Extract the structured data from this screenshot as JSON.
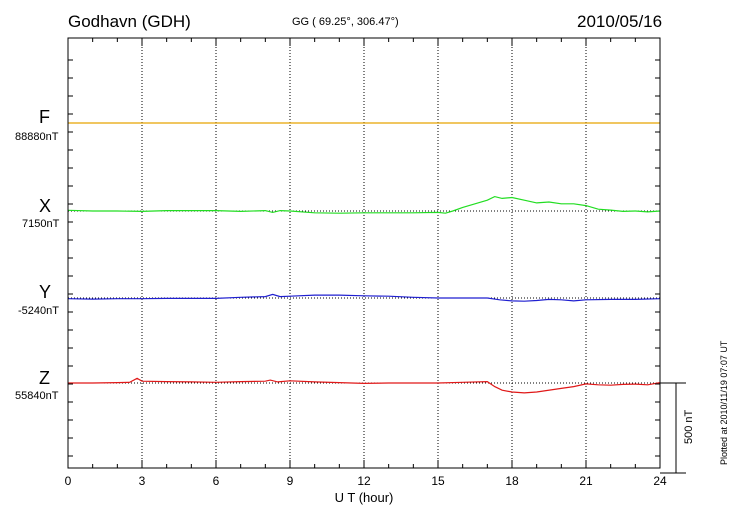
{
  "header": {
    "station": "Godhavn (GDH)",
    "coords": "GG ( 69.25°, 306.47°)",
    "date": "2010/05/16"
  },
  "side_note": "Plotted at 2010/11/19 07:07 UT",
  "scale_label": "500 nT",
  "chart_data": {
    "type": "line",
    "xlabel": "U T (hour)",
    "xlim": [
      0,
      24
    ],
    "x_ticks": [
      0,
      3,
      6,
      9,
      12,
      15,
      18,
      21,
      24
    ],
    "units": "nT",
    "scale_bar_nT": 500,
    "grid": true,
    "series": [
      {
        "name": "F",
        "baseline_label": "88880nT",
        "color": "#e8a400",
        "values": [
          [
            0,
            0
          ],
          [
            24,
            0
          ]
        ]
      },
      {
        "name": "X",
        "baseline_label": "7150nT",
        "color": "#22dd22",
        "values": [
          [
            0,
            4
          ],
          [
            1,
            0
          ],
          [
            2,
            0
          ],
          [
            3,
            -2
          ],
          [
            4,
            2
          ],
          [
            5,
            2
          ],
          [
            6,
            2
          ],
          [
            7,
            -2
          ],
          [
            8,
            2
          ],
          [
            8.3,
            -8
          ],
          [
            8.6,
            2
          ],
          [
            9,
            0
          ],
          [
            10,
            -10
          ],
          [
            11,
            -12
          ],
          [
            12,
            -10
          ],
          [
            13,
            -10
          ],
          [
            14,
            -10
          ],
          [
            15,
            -8
          ],
          [
            15.3,
            -12
          ],
          [
            15.6,
            0
          ],
          [
            16,
            20
          ],
          [
            16.5,
            40
          ],
          [
            17,
            60
          ],
          [
            17.3,
            80
          ],
          [
            17.6,
            70
          ],
          [
            18,
            75
          ],
          [
            18.5,
            60
          ],
          [
            19,
            45
          ],
          [
            19.5,
            50
          ],
          [
            20,
            40
          ],
          [
            20.5,
            40
          ],
          [
            21,
            30
          ],
          [
            21.5,
            10
          ],
          [
            22,
            5
          ],
          [
            22.5,
            -2
          ],
          [
            23,
            0
          ],
          [
            23.5,
            -5
          ],
          [
            24,
            0
          ]
        ]
      },
      {
        "name": "Y",
        "baseline_label": "-5240nT",
        "color": "#1f1fd0",
        "values": [
          [
            0,
            -4
          ],
          [
            1,
            -6
          ],
          [
            2,
            -4
          ],
          [
            3,
            -4
          ],
          [
            4,
            -2
          ],
          [
            5,
            -2
          ],
          [
            6,
            -2
          ],
          [
            7,
            4
          ],
          [
            8,
            8
          ],
          [
            8.3,
            20
          ],
          [
            8.6,
            8
          ],
          [
            9,
            10
          ],
          [
            10,
            16
          ],
          [
            11,
            16
          ],
          [
            12,
            12
          ],
          [
            13,
            10
          ],
          [
            14,
            4
          ],
          [
            15,
            0
          ],
          [
            16,
            0
          ],
          [
            17,
            0
          ],
          [
            17.5,
            -10
          ],
          [
            18,
            -16
          ],
          [
            18.5,
            -18
          ],
          [
            19,
            -14
          ],
          [
            19.5,
            -8
          ],
          [
            20,
            -10
          ],
          [
            20.5,
            -16
          ],
          [
            21,
            -10
          ],
          [
            22,
            -8
          ],
          [
            23,
            -8
          ],
          [
            24,
            -4
          ]
        ]
      },
      {
        "name": "Z",
        "baseline_label": "55840nT",
        "color": "#e01818",
        "values": [
          [
            0,
            0
          ],
          [
            1,
            0
          ],
          [
            2,
            2
          ],
          [
            2.5,
            4
          ],
          [
            2.8,
            26
          ],
          [
            3,
            10
          ],
          [
            4,
            8
          ],
          [
            5,
            6
          ],
          [
            6,
            4
          ],
          [
            7,
            8
          ],
          [
            8,
            10
          ],
          [
            8.2,
            16
          ],
          [
            8.5,
            6
          ],
          [
            9,
            12
          ],
          [
            10,
            6
          ],
          [
            11,
            2
          ],
          [
            12,
            -2
          ],
          [
            13,
            0
          ],
          [
            14,
            0
          ],
          [
            15,
            0
          ],
          [
            16,
            4
          ],
          [
            17,
            8
          ],
          [
            17.3,
            -20
          ],
          [
            17.6,
            -40
          ],
          [
            18,
            -50
          ],
          [
            18.5,
            -55
          ],
          [
            19,
            -50
          ],
          [
            20,
            -30
          ],
          [
            20.5,
            -20
          ],
          [
            21,
            -5
          ],
          [
            21.5,
            -10
          ],
          [
            22,
            -12
          ],
          [
            22.5,
            -8
          ],
          [
            23,
            -6
          ],
          [
            23.5,
            -10
          ],
          [
            24,
            2
          ]
        ]
      }
    ]
  }
}
